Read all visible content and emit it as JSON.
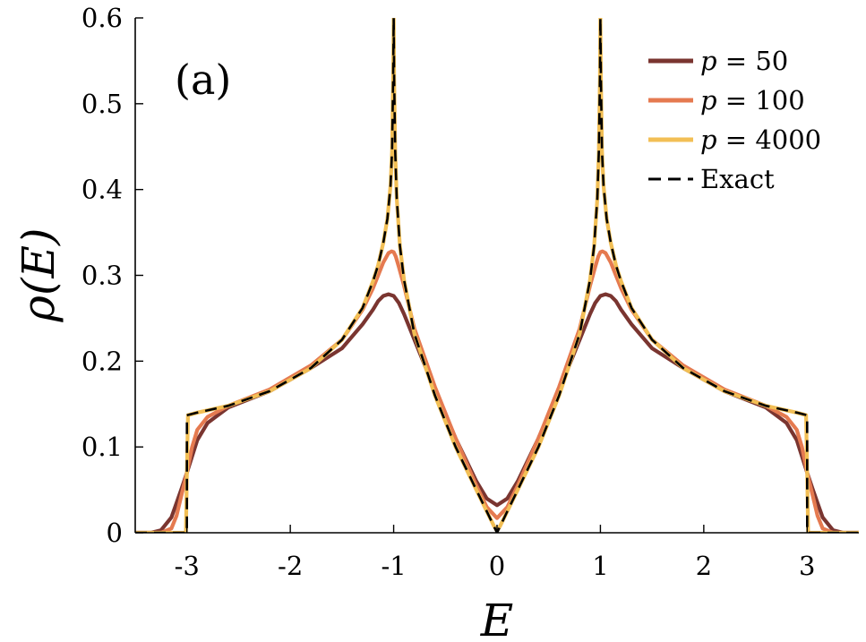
{
  "chart_data": {
    "type": "line",
    "title": "",
    "panel_label": "(a)",
    "xlabel": "E",
    "ylabel": "ρ(E)",
    "xlim": [
      -3.5,
      3.5
    ],
    "ylim": [
      0,
      0.6
    ],
    "x_ticks": [
      -3,
      -2,
      -1,
      0,
      1,
      2,
      3
    ],
    "x_tick_labels": [
      "-3",
      "-2",
      "-1",
      "0",
      "1",
      "2",
      "3"
    ],
    "y_ticks": [
      0,
      0.1,
      0.2,
      0.3,
      0.4,
      0.5,
      0.6
    ],
    "y_tick_labels": [
      "0",
      "0.1",
      "0.2",
      "0.3",
      "0.4",
      "0.5",
      "0.6"
    ],
    "legend_position": "top-right",
    "series": [
      {
        "name": "p = 50",
        "legend_var": "p",
        "legend_eq": "= 50",
        "color": "#7a3530",
        "style": "solid",
        "x": [
          -3.5,
          -3.35,
          -3.25,
          -3.15,
          -3.1,
          -3.05,
          -3.0,
          -2.95,
          -2.9,
          -2.8,
          -2.6,
          -2.2,
          -1.8,
          -1.5,
          -1.3,
          -1.2,
          -1.15,
          -1.1,
          -1.05,
          -1.0,
          -0.95,
          -0.9,
          -0.8,
          -0.6,
          -0.4,
          -0.2,
          -0.1,
          0.0,
          0.1,
          0.2,
          0.4,
          0.6,
          0.8,
          0.9,
          0.95,
          1.0,
          1.05,
          1.1,
          1.15,
          1.2,
          1.3,
          1.5,
          1.8,
          2.2,
          2.6,
          2.8,
          2.9,
          2.95,
          3.0,
          3.05,
          3.1,
          3.15,
          3.25,
          3.35,
          3.5
        ],
        "y": [
          0,
          0.0,
          0.003,
          0.018,
          0.035,
          0.052,
          0.07,
          0.089,
          0.108,
          0.128,
          0.146,
          0.165,
          0.192,
          0.215,
          0.243,
          0.26,
          0.27,
          0.276,
          0.278,
          0.276,
          0.268,
          0.255,
          0.225,
          0.166,
          0.11,
          0.06,
          0.04,
          0.032,
          0.04,
          0.06,
          0.11,
          0.166,
          0.225,
          0.255,
          0.268,
          0.276,
          0.278,
          0.276,
          0.27,
          0.26,
          0.243,
          0.215,
          0.192,
          0.165,
          0.146,
          0.128,
          0.108,
          0.089,
          0.07,
          0.052,
          0.035,
          0.018,
          0.003,
          0.0,
          0
        ]
      },
      {
        "name": "p = 100",
        "legend_var": "p",
        "legend_eq": "= 100",
        "color": "#e57a50",
        "style": "solid",
        "x": [
          -3.5,
          -3.25,
          -3.15,
          -3.1,
          -3.05,
          -3.0,
          -2.95,
          -2.9,
          -2.8,
          -2.6,
          -2.2,
          -1.8,
          -1.5,
          -1.3,
          -1.2,
          -1.15,
          -1.1,
          -1.05,
          -1.02,
          -1.0,
          -0.98,
          -0.95,
          -0.9,
          -0.8,
          -0.6,
          -0.4,
          -0.2,
          -0.1,
          0.0,
          0.1,
          0.2,
          0.4,
          0.6,
          0.8,
          0.9,
          0.95,
          0.98,
          1.0,
          1.02,
          1.05,
          1.1,
          1.15,
          1.2,
          1.3,
          1.5,
          1.8,
          2.2,
          2.6,
          2.8,
          2.9,
          2.95,
          3.0,
          3.05,
          3.1,
          3.15,
          3.25,
          3.5
        ],
        "y": [
          0,
          0.0,
          0.005,
          0.02,
          0.045,
          0.07,
          0.1,
          0.12,
          0.135,
          0.148,
          0.167,
          0.195,
          0.225,
          0.26,
          0.285,
          0.3,
          0.315,
          0.326,
          0.328,
          0.327,
          0.322,
          0.31,
          0.288,
          0.238,
          0.17,
          0.11,
          0.055,
          0.03,
          0.017,
          0.03,
          0.055,
          0.11,
          0.17,
          0.238,
          0.288,
          0.31,
          0.322,
          0.327,
          0.328,
          0.326,
          0.315,
          0.3,
          0.285,
          0.26,
          0.225,
          0.195,
          0.167,
          0.148,
          0.135,
          0.12,
          0.1,
          0.07,
          0.045,
          0.02,
          0.005,
          0.0,
          0
        ]
      },
      {
        "name": "p = 4000",
        "legend_var": "p",
        "legend_eq": "= 4000",
        "color": "#f2bf55",
        "style": "solid",
        "x": [
          -3.5,
          -3.01,
          -3.0,
          -2.99,
          -2.9,
          -2.6,
          -2.2,
          -1.8,
          -1.5,
          -1.3,
          -1.2,
          -1.15,
          -1.1,
          -1.06,
          -1.03,
          -1.015,
          -1.005,
          -1.0,
          -0.995,
          -0.985,
          -0.97,
          -0.94,
          -0.9,
          -0.8,
          -0.6,
          -0.4,
          -0.2,
          -0.1,
          -0.03,
          0.0,
          0.03,
          0.1,
          0.2,
          0.4,
          0.6,
          0.8,
          0.9,
          0.94,
          0.97,
          0.985,
          0.995,
          1.0,
          1.005,
          1.015,
          1.03,
          1.06,
          1.1,
          1.15,
          1.2,
          1.3,
          1.5,
          1.8,
          2.2,
          2.6,
          2.9,
          2.99,
          3.0,
          3.01,
          3.5
        ],
        "y": [
          0,
          0,
          0.07,
          0.137,
          0.14,
          0.148,
          0.165,
          0.192,
          0.225,
          0.262,
          0.293,
          0.312,
          0.338,
          0.366,
          0.405,
          0.445,
          0.53,
          0.6,
          0.53,
          0.445,
          0.39,
          0.335,
          0.295,
          0.232,
          0.16,
          0.1,
          0.05,
          0.025,
          0.008,
          0.002,
          0.008,
          0.025,
          0.05,
          0.1,
          0.16,
          0.232,
          0.295,
          0.335,
          0.39,
          0.445,
          0.53,
          0.6,
          0.53,
          0.445,
          0.405,
          0.366,
          0.338,
          0.312,
          0.293,
          0.262,
          0.225,
          0.192,
          0.165,
          0.148,
          0.14,
          0.137,
          0.07,
          0,
          0
        ]
      },
      {
        "name": "Exact",
        "legend_var": "",
        "legend_eq": "Exact",
        "color": "#000000",
        "style": "dashed",
        "x": [
          -3.5,
          -3.0,
          -3.0,
          -2.9,
          -2.6,
          -2.2,
          -1.8,
          -1.5,
          -1.3,
          -1.2,
          -1.15,
          -1.1,
          -1.06,
          -1.03,
          -1.015,
          -1.005,
          -1.0,
          -0.995,
          -0.985,
          -0.97,
          -0.94,
          -0.9,
          -0.8,
          -0.6,
          -0.4,
          -0.2,
          -0.1,
          0.0,
          0.1,
          0.2,
          0.4,
          0.6,
          0.8,
          0.9,
          0.94,
          0.97,
          0.985,
          0.995,
          1.0,
          1.005,
          1.015,
          1.03,
          1.06,
          1.1,
          1.15,
          1.2,
          1.3,
          1.5,
          1.8,
          2.2,
          2.6,
          2.9,
          3.0,
          3.0,
          3.5
        ],
        "y": [
          0,
          0,
          0.137,
          0.14,
          0.148,
          0.165,
          0.192,
          0.225,
          0.262,
          0.293,
          0.312,
          0.338,
          0.366,
          0.405,
          0.445,
          0.53,
          0.6,
          0.53,
          0.445,
          0.39,
          0.335,
          0.295,
          0.232,
          0.16,
          0.1,
          0.05,
          0.025,
          0.0,
          0.025,
          0.05,
          0.1,
          0.16,
          0.232,
          0.295,
          0.335,
          0.39,
          0.445,
          0.53,
          0.6,
          0.53,
          0.445,
          0.405,
          0.366,
          0.338,
          0.312,
          0.293,
          0.262,
          0.225,
          0.192,
          0.165,
          0.148,
          0.14,
          0.137,
          0,
          0
        ]
      }
    ]
  }
}
